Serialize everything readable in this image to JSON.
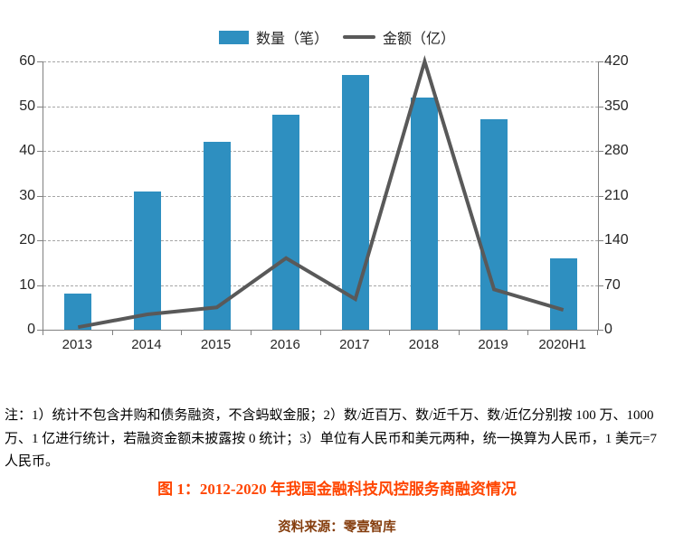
{
  "chart_data": {
    "type": "bar",
    "subtype": "combo-bar-line",
    "categories": [
      "2013",
      "2014",
      "2015",
      "2016",
      "2017",
      "2018",
      "2019",
      "2020H1"
    ],
    "series": [
      {
        "name": "数量（笔）",
        "type": "bar",
        "axis": "left",
        "color": "#2e8fc0",
        "values": [
          8,
          31,
          42,
          48,
          57,
          52,
          47,
          16
        ]
      },
      {
        "name": "金额（亿）",
        "type": "line",
        "axis": "right",
        "color": "#595959",
        "values": [
          4,
          24,
          35,
          112,
          48,
          420,
          63,
          31
        ]
      }
    ],
    "title": "图 1：2012-2020 年我国金融科技风控服务商融资情况",
    "xlabel": "",
    "ylabel_left": "数量（笔）",
    "ylabel_right": "金额（亿）",
    "left_axis": {
      "min": 0,
      "max": 60,
      "ticks": [
        0,
        10,
        20,
        30,
        40,
        50,
        60
      ]
    },
    "right_axis": {
      "min": 0,
      "max": 420,
      "ticks": [
        0,
        70,
        140,
        210,
        280,
        350,
        420
      ]
    },
    "grid": "horizontal-dashed",
    "legend_position": "top-center"
  },
  "colors": {
    "bar": "#2e8fc0",
    "line": "#595959",
    "gridline": "#a6a6a6",
    "axis": "#808080",
    "axis_text": "#262626",
    "caption": "#ff4500",
    "source": "#843c0c",
    "notes": "#000000"
  },
  "notes": "注：1）统计不包含并购和债务融资，不含蚂蚁金服；2）数/近百万、数/近千万、数/近亿分别按 100 万、1000 万、1 亿进行统计，若融资金额未披露按 0 统计；3）单位有人民币和美元两种，统一换算为人民币，1 美元=7 人民币。",
  "caption": "图 1：2012-2020 年我国金融科技风控服务商融资情况",
  "source": "资料来源：零壹智库"
}
